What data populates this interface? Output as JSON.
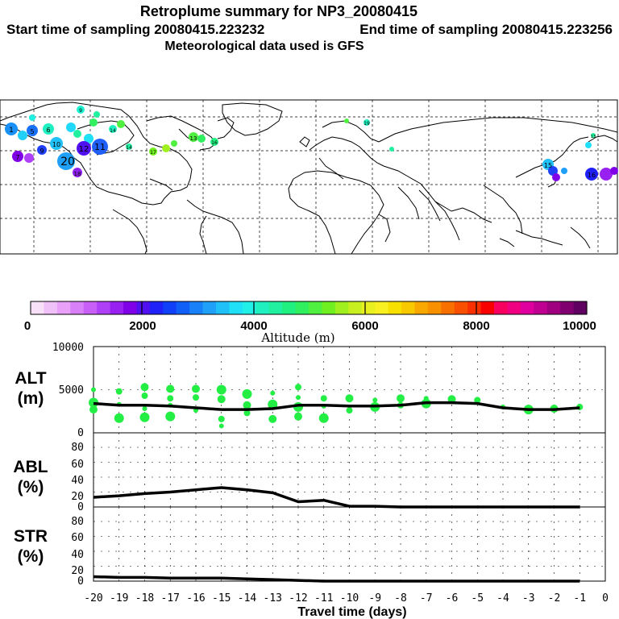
{
  "header": {
    "title": "Retroplume summary for NP3_20080415",
    "start_label": "Start time of sampling 20080415.223232",
    "end_label": "End time of sampling 20080415.223256",
    "met_label": "Meteorological data used is GFS"
  },
  "colorbar": {
    "title": "Altitude (m)",
    "ticks": [
      "0",
      "2000",
      "4000",
      "6000",
      "8000",
      "10000"
    ],
    "colors": [
      "#f8e0f8",
      "#f0c0f8",
      "#e8a0f8",
      "#d880f8",
      "#c860f8",
      "#b040f8",
      "#9820f0",
      "#8000e8",
      "#5010f0",
      "#2020f8",
      "#1040f8",
      "#1060f8",
      "#1880f8",
      "#20a0f8",
      "#20c0f8",
      "#20e0f8",
      "#20f0e8",
      "#20f0c0",
      "#20f0a0",
      "#20f080",
      "#30f060",
      "#50f040",
      "#70f020",
      "#a0f020",
      "#c8f020",
      "#e8f020",
      "#f8f020",
      "#f8e000",
      "#f8c800",
      "#f8a800",
      "#f89000",
      "#f87000",
      "#f85000",
      "#f83000",
      "#f80000",
      "#f80060",
      "#f00080",
      "#e000a0",
      "#c00090",
      "#a00080",
      "#800070",
      "#600060"
    ]
  },
  "chart_data": [
    {
      "type": "line",
      "panel": "ALT",
      "ylabel": "ALT\n(m)",
      "ylabel_lines": [
        "ALT",
        "(m)"
      ],
      "ylim": [
        0,
        10000
      ],
      "yticks": [
        "0",
        "5000",
        "10000"
      ],
      "x": [
        -20,
        -19,
        -18,
        -17,
        -16,
        -15,
        -14,
        -13,
        -12,
        -11,
        -10,
        -9,
        -8,
        -7,
        -6,
        -5,
        -4,
        -3,
        -2,
        -1
      ],
      "values": [
        3400,
        3200,
        3200,
        3100,
        2900,
        2700,
        2700,
        2800,
        3200,
        3200,
        3100,
        3100,
        3200,
        3500,
        3500,
        3400,
        2900,
        2700,
        2700,
        2900
      ],
      "scatter": {
        "color": "#22ee44",
        "x": [
          -20,
          -20,
          -20,
          -19,
          -19,
          -19,
          -18,
          -18,
          -18,
          -18,
          -17,
          -17,
          -17,
          -17,
          -16,
          -16,
          -16,
          -15,
          -15,
          -15,
          -15,
          -14,
          -14,
          -14,
          -13,
          -13,
          -13,
          -12,
          -12,
          -12,
          -12,
          -11,
          -11,
          -11,
          -10,
          -10,
          -9,
          -9,
          -8,
          -8,
          -7,
          -7,
          -6,
          -5,
          -4,
          -3,
          -2,
          -1
        ],
        "y": [
          5000,
          3500,
          2700,
          4800,
          3300,
          1700,
          5300,
          4300,
          2800,
          1800,
          5100,
          4000,
          3200,
          1900,
          5100,
          4100,
          2600,
          5000,
          3900,
          1600,
          800,
          4500,
          3200,
          2300,
          4600,
          3300,
          1600,
          5300,
          4100,
          3000,
          1900,
          4000,
          3100,
          1700,
          4000,
          2600,
          3800,
          3000,
          4000,
          3200,
          4000,
          3400,
          3900,
          3800,
          3000,
          2700,
          2800,
          3000
        ]
      }
    },
    {
      "type": "line",
      "panel": "ABL",
      "ylabel_lines": [
        "ABL",
        "(%)"
      ],
      "ylim": [
        0,
        90
      ],
      "yticks": [
        "0",
        "20",
        "40",
        "60",
        "80"
      ],
      "x": [
        -20,
        -19,
        -18,
        -17,
        -16,
        -15,
        -14,
        -13,
        -12,
        -11,
        -10,
        -9,
        -8,
        -7,
        -6,
        -5,
        -4,
        -3,
        -2,
        -1
      ],
      "values": [
        13,
        15,
        18,
        20,
        23,
        26,
        23,
        19,
        7,
        9,
        1,
        1,
        0,
        0,
        0,
        0,
        0,
        0,
        0,
        0
      ]
    },
    {
      "type": "line",
      "panel": "STR",
      "ylabel_lines": [
        "STR",
        "(%)"
      ],
      "ylim": [
        0,
        90
      ],
      "yticks": [
        "0",
        "20",
        "40",
        "60",
        "80"
      ],
      "x": [
        -20,
        -19,
        -18,
        -17,
        -16,
        -15,
        -14,
        -13,
        -12,
        -11,
        -10,
        -9,
        -8,
        -7,
        -6,
        -5,
        -4,
        -3,
        -2,
        -1
      ],
      "values": [
        6,
        5,
        5,
        4,
        4,
        4,
        3,
        2,
        1,
        0,
        0,
        0,
        0,
        0,
        0,
        0,
        0,
        0,
        0,
        0
      ]
    }
  ],
  "xaxis": {
    "label": "Travel time (days)",
    "ticks": [
      "-20",
      "-19",
      "-18",
      "-17",
      "-16",
      "-15",
      "-14",
      "-13",
      "-12",
      "-11",
      "-10",
      "-9",
      "-8",
      "-7",
      "-6",
      "-5",
      "-4",
      "-3",
      "-2",
      "-1",
      "0"
    ],
    "range": [
      -20,
      0
    ]
  },
  "map": {
    "labels": [
      "20",
      "1",
      "3",
      "4",
      "5",
      "6",
      "7",
      "8",
      "9",
      "10",
      "11",
      "12",
      "13",
      "14",
      "15",
      "16",
      "17",
      "18",
      "19"
    ]
  }
}
